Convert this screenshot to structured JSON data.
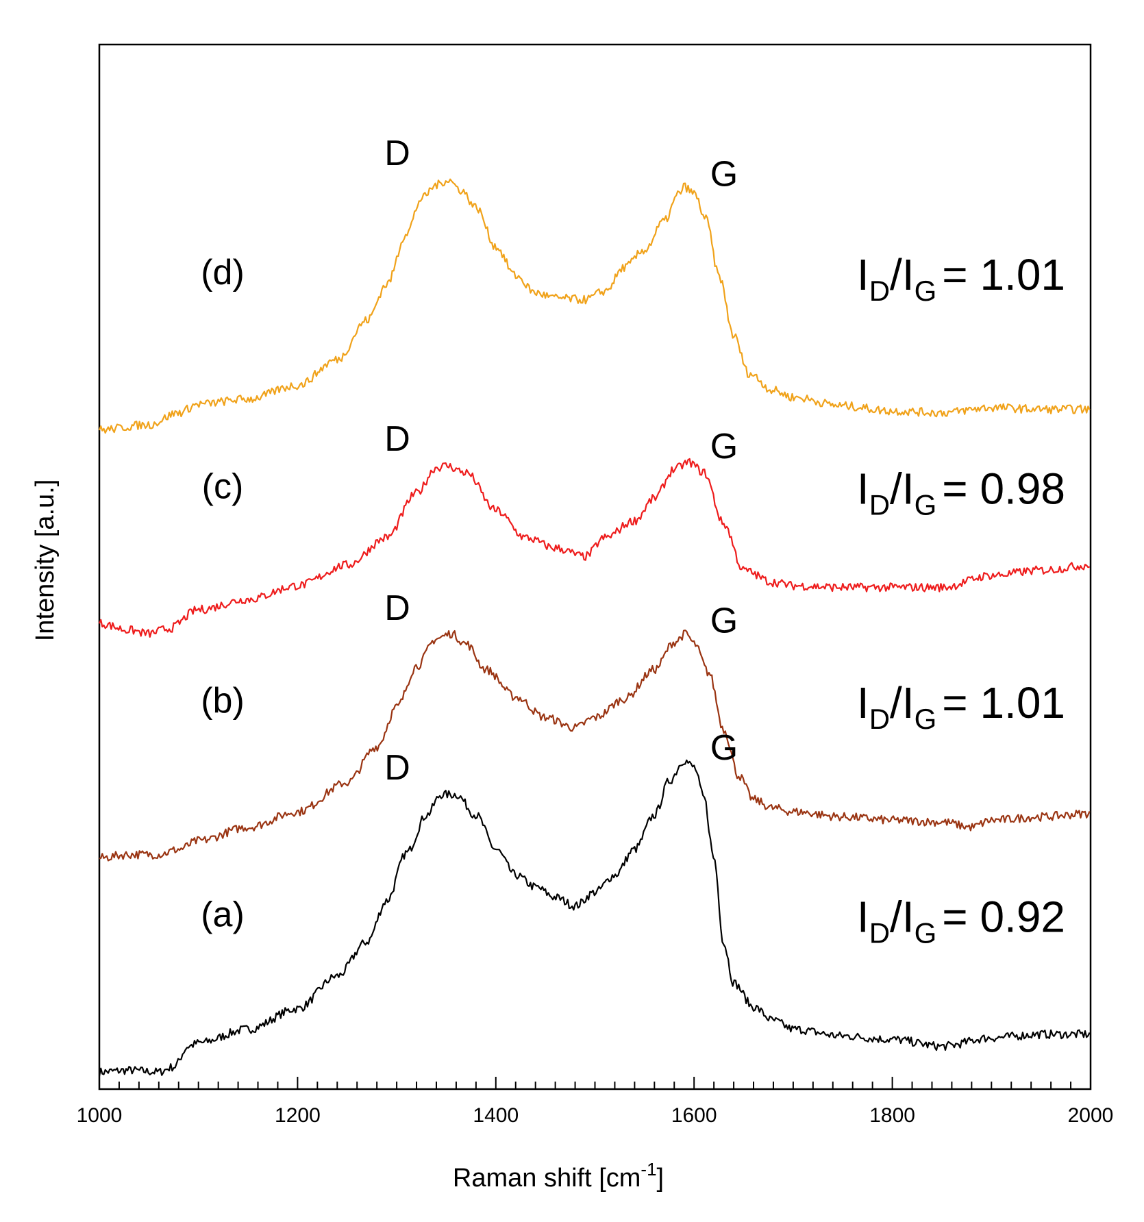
{
  "chart_data": {
    "type": "line",
    "xlabel": "Raman shift [cm",
    "xlabel_sup": "-1",
    "xlabel_close": "]",
    "ylabel": "Intensity [a.u.]",
    "xlim": [
      1000,
      2000
    ],
    "x_ticks": [
      1000,
      1200,
      1400,
      1600,
      1800,
      2000
    ],
    "tick_labels": [
      "1000",
      "1200",
      "1400",
      "1600",
      "1800",
      "2000"
    ],
    "yticks": "none",
    "grid": false,
    "series": [
      {
        "name": "(a)",
        "color": "#000000",
        "ratio": "0.92",
        "base": 0,
        "points": [
          [
            1000,
            0.1
          ],
          [
            1030,
            0.11
          ],
          [
            1060,
            0.1
          ],
          [
            1075,
            0.13
          ],
          [
            1090,
            0.25
          ],
          [
            1100,
            0.27
          ],
          [
            1150,
            0.35
          ],
          [
            1200,
            0.47
          ],
          [
            1240,
            0.66
          ],
          [
            1270,
            0.86
          ],
          [
            1290,
            1.1
          ],
          [
            1310,
            1.38
          ],
          [
            1330,
            1.6
          ],
          [
            1345,
            1.72
          ],
          [
            1360,
            1.72
          ],
          [
            1380,
            1.6
          ],
          [
            1400,
            1.4
          ],
          [
            1420,
            1.25
          ],
          [
            1440,
            1.18
          ],
          [
            1460,
            1.12
          ],
          [
            1480,
            1.07
          ],
          [
            1500,
            1.15
          ],
          [
            1520,
            1.25
          ],
          [
            1540,
            1.4
          ],
          [
            1560,
            1.6
          ],
          [
            1575,
            1.8
          ],
          [
            1590,
            1.92
          ],
          [
            1600,
            1.88
          ],
          [
            1610,
            1.7
          ],
          [
            1620,
            1.35
          ],
          [
            1630,
            0.85
          ],
          [
            1640,
            0.62
          ],
          [
            1660,
            0.48
          ],
          [
            1680,
            0.4
          ],
          [
            1700,
            0.35
          ],
          [
            1750,
            0.31
          ],
          [
            1800,
            0.29
          ],
          [
            1850,
            0.25
          ],
          [
            1900,
            0.3
          ],
          [
            1950,
            0.32
          ],
          [
            2000,
            0.32
          ]
        ]
      },
      {
        "name": "(b)",
        "color": "#9a3412",
        "ratio": "1.01",
        "base": 1.25,
        "points": [
          [
            1000,
            0.1
          ],
          [
            1030,
            0.12
          ],
          [
            1060,
            0.12
          ],
          [
            1080,
            0.15
          ],
          [
            1100,
            0.2
          ],
          [
            1150,
            0.28
          ],
          [
            1200,
            0.37
          ],
          [
            1250,
            0.54
          ],
          [
            1280,
            0.75
          ],
          [
            1300,
            0.98
          ],
          [
            1320,
            1.22
          ],
          [
            1340,
            1.38
          ],
          [
            1355,
            1.41
          ],
          [
            1370,
            1.35
          ],
          [
            1390,
            1.2
          ],
          [
            1420,
            1.04
          ],
          [
            1450,
            0.92
          ],
          [
            1480,
            0.86
          ],
          [
            1500,
            0.92
          ],
          [
            1530,
            1.03
          ],
          [
            1560,
            1.2
          ],
          [
            1580,
            1.36
          ],
          [
            1592,
            1.41
          ],
          [
            1600,
            1.35
          ],
          [
            1615,
            1.18
          ],
          [
            1630,
            0.85
          ],
          [
            1645,
            0.58
          ],
          [
            1660,
            0.44
          ],
          [
            1680,
            0.39
          ],
          [
            1700,
            0.37
          ],
          [
            1750,
            0.34
          ],
          [
            1800,
            0.32
          ],
          [
            1850,
            0.31
          ],
          [
            1880,
            0.28
          ],
          [
            1900,
            0.32
          ],
          [
            1950,
            0.34
          ],
          [
            2000,
            0.36
          ]
        ]
      },
      {
        "name": "(c)",
        "color": "#ee1c1c",
        "ratio": "0.98",
        "base": 2.5,
        "points": [
          [
            1000,
            0.22
          ],
          [
            1030,
            0.18
          ],
          [
            1050,
            0.16
          ],
          [
            1070,
            0.19
          ],
          [
            1100,
            0.3
          ],
          [
            1150,
            0.36
          ],
          [
            1200,
            0.44
          ],
          [
            1250,
            0.56
          ],
          [
            1290,
            0.72
          ],
          [
            1320,
            0.98
          ],
          [
            1340,
            1.13
          ],
          [
            1350,
            1.14
          ],
          [
            1370,
            1.1
          ],
          [
            1400,
            0.88
          ],
          [
            1430,
            0.72
          ],
          [
            1460,
            0.66
          ],
          [
            1490,
            0.61
          ],
          [
            1510,
            0.72
          ],
          [
            1540,
            0.82
          ],
          [
            1560,
            0.95
          ],
          [
            1580,
            1.12
          ],
          [
            1595,
            1.16
          ],
          [
            1610,
            1.1
          ],
          [
            1630,
            0.8
          ],
          [
            1650,
            0.53
          ],
          [
            1680,
            0.46
          ],
          [
            1700,
            0.44
          ],
          [
            1750,
            0.43
          ],
          [
            1800,
            0.43
          ],
          [
            1850,
            0.43
          ],
          [
            1900,
            0.5
          ],
          [
            1950,
            0.53
          ],
          [
            2000,
            0.56
          ]
        ]
      },
      {
        "name": "(d)",
        "color": "#f0a21a",
        "ratio": "1.01",
        "base": 3.75,
        "points": [
          [
            1000,
            0.1
          ],
          [
            1050,
            0.13
          ],
          [
            1080,
            0.2
          ],
          [
            1100,
            0.25
          ],
          [
            1150,
            0.28
          ],
          [
            1200,
            0.36
          ],
          [
            1240,
            0.51
          ],
          [
            1270,
            0.74
          ],
          [
            1290,
            0.95
          ],
          [
            1310,
            1.25
          ],
          [
            1325,
            1.45
          ],
          [
            1340,
            1.53
          ],
          [
            1352,
            1.56
          ],
          [
            1365,
            1.5
          ],
          [
            1380,
            1.4
          ],
          [
            1400,
            1.17
          ],
          [
            1420,
            1.0
          ],
          [
            1440,
            0.9
          ],
          [
            1460,
            0.87
          ],
          [
            1490,
            0.86
          ],
          [
            1510,
            0.91
          ],
          [
            1530,
            1.05
          ],
          [
            1550,
            1.15
          ],
          [
            1570,
            1.32
          ],
          [
            1585,
            1.48
          ],
          [
            1590,
            1.52
          ],
          [
            1600,
            1.48
          ],
          [
            1612,
            1.33
          ],
          [
            1625,
            1.0
          ],
          [
            1640,
            0.65
          ],
          [
            1655,
            0.43
          ],
          [
            1680,
            0.33
          ],
          [
            1700,
            0.29
          ],
          [
            1750,
            0.24
          ],
          [
            1800,
            0.21
          ],
          [
            1850,
            0.2
          ],
          [
            1900,
            0.23
          ],
          [
            1950,
            0.22
          ],
          [
            2000,
            0.22
          ]
        ]
      }
    ],
    "annotations": {
      "peak_D": "D",
      "peak_G": "G",
      "ratio_I": "I",
      "ratio_D": "D",
      "ratio_G": "G",
      "ratio_sep": "/",
      "ratio_eq": "= "
    }
  }
}
